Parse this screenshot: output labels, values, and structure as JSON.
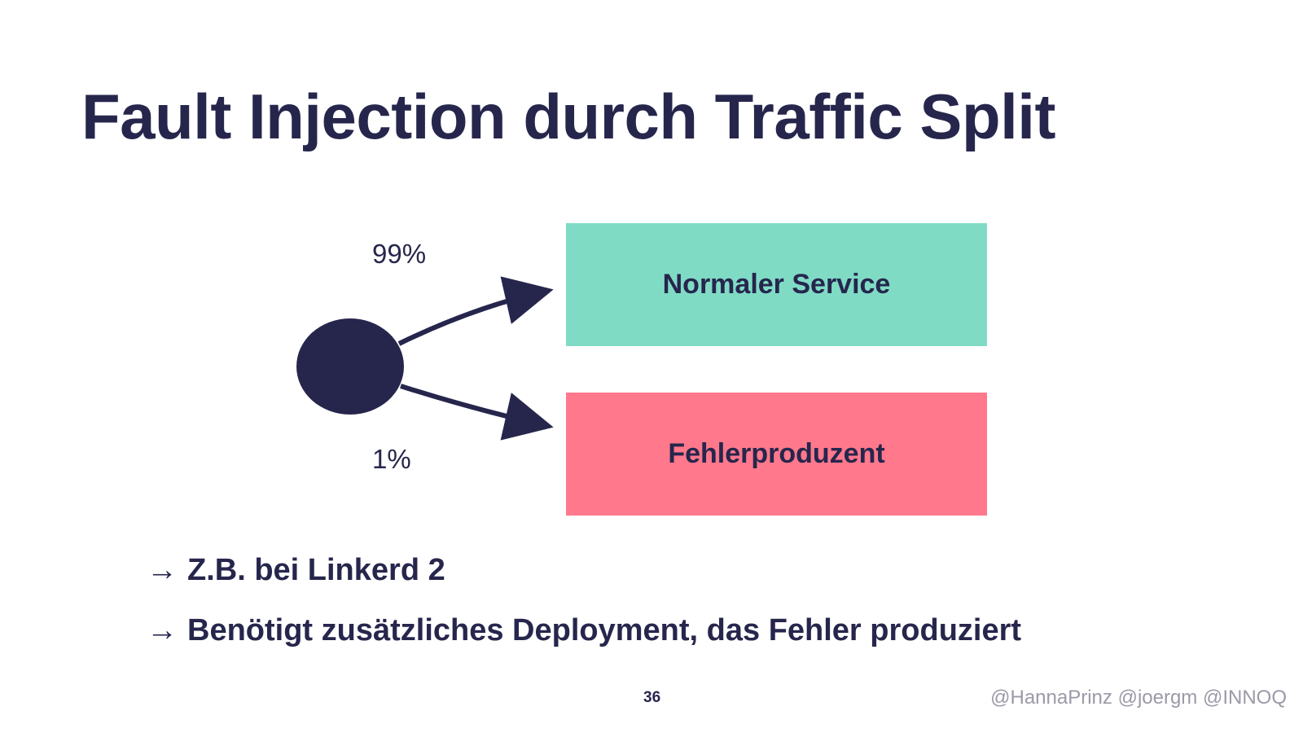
{
  "slide": {
    "title": "Fault Injection durch Traffic Split",
    "page_number": "36",
    "footer": "@HannaPrinz @joergm @INNOQ"
  },
  "diagram": {
    "split_top_label": "99%",
    "split_bottom_label": "1%",
    "target_normal": {
      "label": "Normaler Service",
      "color": "#80dbc5"
    },
    "target_fault": {
      "label": "Fehlerproduzent",
      "color": "#ff788c"
    },
    "source_color": "#26264d"
  },
  "bullets": [
    {
      "arrow": "→",
      "text": "Z.B. bei Linkerd 2"
    },
    {
      "arrow": "→",
      "text": "Benötigt zusätzliches Deployment, das Fehler produziert"
    }
  ]
}
